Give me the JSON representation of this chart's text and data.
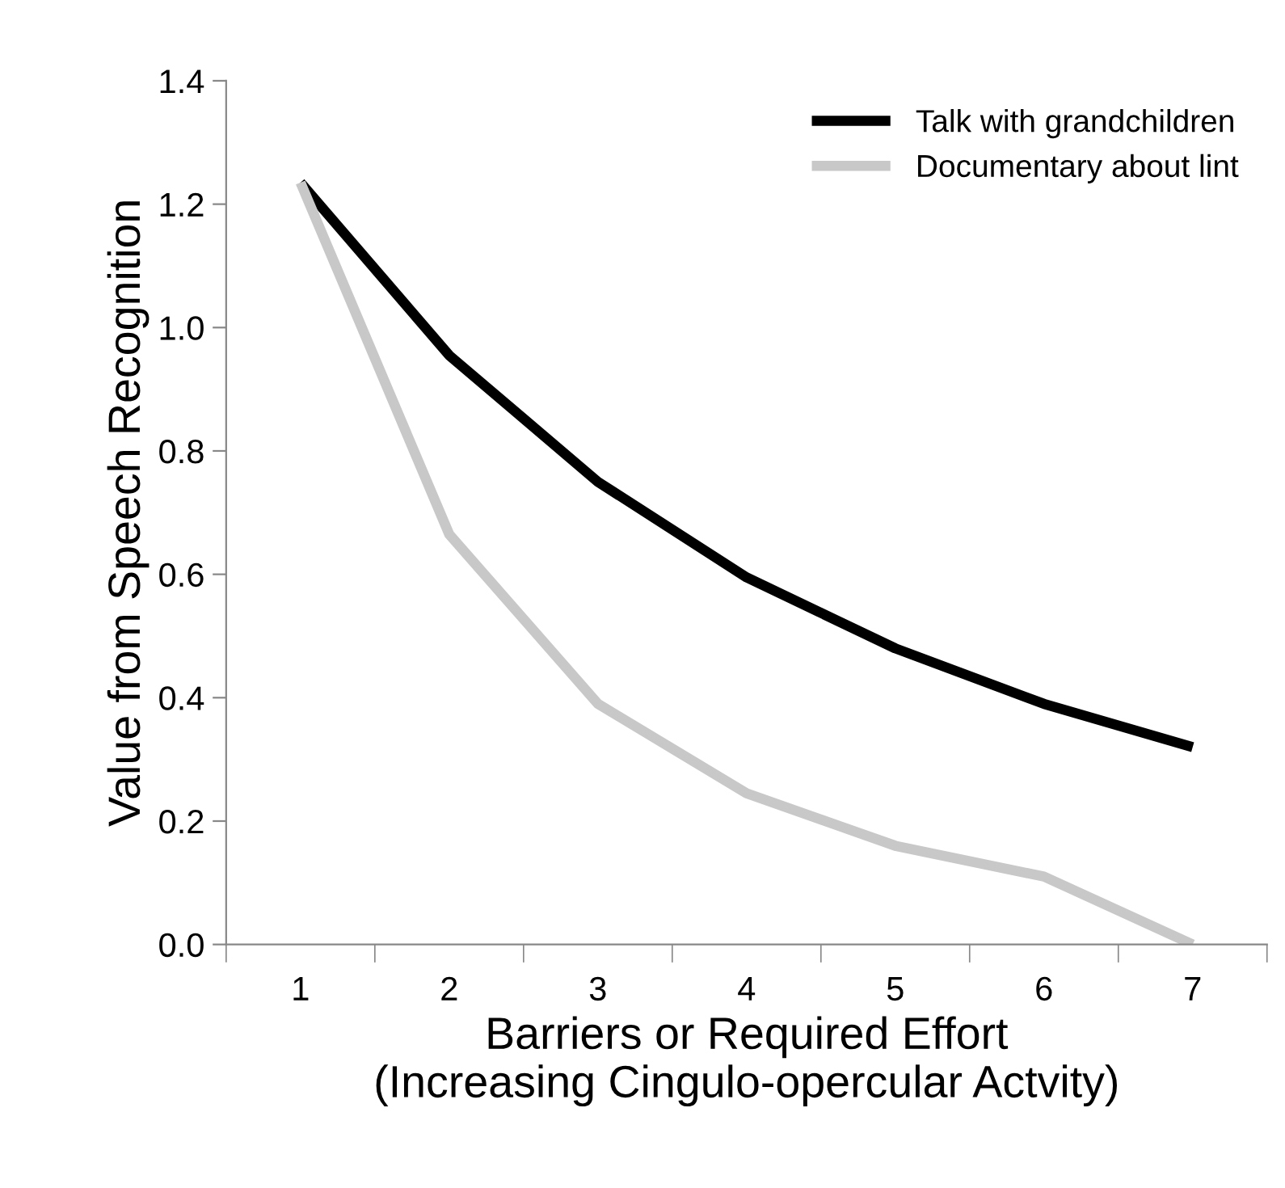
{
  "chart_data": {
    "type": "line",
    "xlabel": "Barriers or Required Effort\n(Increasing Cingulo-opercular Actvity)",
    "ylabel": "Value from Speech Recognition",
    "categories": [
      "1",
      "2",
      "3",
      "4",
      "5",
      "6",
      "7"
    ],
    "series": [
      {
        "name": "Talk with grandchildren",
        "color": "#000000",
        "values": [
          1.235,
          0.955,
          0.75,
          0.595,
          0.48,
          0.39,
          0.32
        ]
      },
      {
        "name": "Documentary about lint",
        "color": "#c8c8c8",
        "values": [
          1.235,
          0.665,
          0.39,
          0.245,
          0.16,
          0.11,
          0.0
        ]
      }
    ],
    "ylim": [
      0,
      1.4
    ],
    "yticks": [
      {
        "value": 0,
        "label": "0.0"
      },
      {
        "value": 0.2,
        "label": "0.2"
      },
      {
        "value": 0.4,
        "label": "0.4"
      },
      {
        "value": 0.6,
        "label": "0.6"
      },
      {
        "value": 0.8,
        "label": "0.8"
      },
      {
        "value": 1.0,
        "label": "1.0"
      },
      {
        "value": 1.2,
        "label": "1.2"
      },
      {
        "value": 1.4,
        "label": "1.4"
      }
    ],
    "grid": false,
    "legend": "top right",
    "marker": "none",
    "line_style": "solid"
  }
}
